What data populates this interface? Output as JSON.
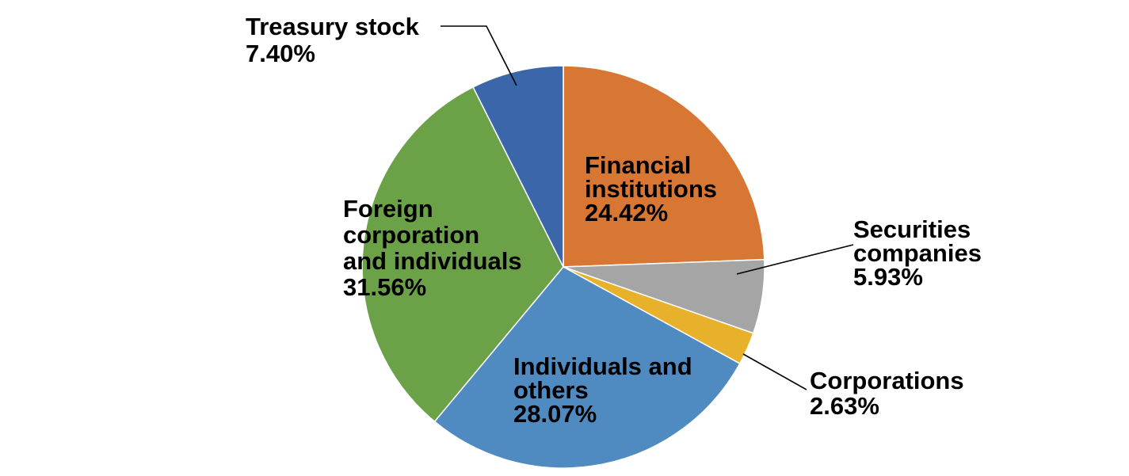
{
  "chart_data": {
    "type": "pie",
    "title": "",
    "start_angle_deg": 0,
    "direction": "clockwise",
    "slices": [
      {
        "name": "Financial institutions",
        "value": 24.42,
        "value_label": "24.42%",
        "color": "#D87733",
        "label_lines": [
          "Financial",
          "institutions"
        ]
      },
      {
        "name": "Securities companies",
        "value": 5.93,
        "value_label": "5.93%",
        "color": "#A5A5A5",
        "label_lines": [
          "Securities",
          "companies"
        ]
      },
      {
        "name": "Corporations",
        "value": 2.63,
        "value_label": "2.63%",
        "color": "#E8B12B",
        "label_lines": [
          "Corporations"
        ]
      },
      {
        "name": "Individuals and others",
        "value": 28.07,
        "value_label": "28.07%",
        "color": "#4F8AC0",
        "label_lines": [
          "Individuals and",
          "others"
        ]
      },
      {
        "name": "Foreign corporation and individuals",
        "value": 31.56,
        "value_label": "31.56%",
        "color": "#6BA247",
        "label_lines": [
          "Foreign",
          "corporation",
          "and individuals"
        ]
      },
      {
        "name": "Treasury stock",
        "value": 7.4,
        "value_label": "7.40%",
        "color": "#3B67AA",
        "label_lines": [
          "Treasury stock"
        ]
      }
    ]
  }
}
